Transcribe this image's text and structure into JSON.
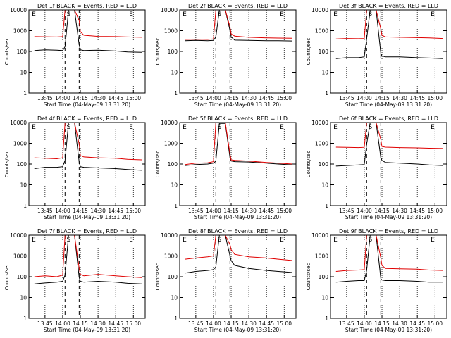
{
  "figure": {
    "xlabel": "Start Time (04-May-09 13:31:20)",
    "ylabel": "Counts/sec"
  },
  "colors": {
    "events": "#000000",
    "lld": "#e00000",
    "background": "#ffffff"
  },
  "chart_data": [
    {
      "type": "line",
      "title": "Det 1f BLACK = Events, RED = LLD",
      "xlabel": "Start Time (04-May-09 13:31:20)",
      "ylabel": "Counts/sec",
      "yscale": "log",
      "ylim": [
        1,
        10000
      ],
      "x_ticks": [
        "13:45",
        "14:00",
        "14:15",
        "14:30",
        "14:45",
        "15:00"
      ],
      "y_ticks": [
        "1",
        "10",
        "100",
        "1000",
        "10000"
      ],
      "markers": [
        "E",
        "S",
        "E"
      ],
      "series": [
        {
          "name": "Events",
          "color": "#000000",
          "x": [
            "13:36",
            "13:45",
            "13:55",
            "14:00",
            "14:02",
            "14:05",
            "14:10",
            "14:14",
            "14:15",
            "14:18",
            "14:30",
            "14:45",
            "14:55",
            "15:07"
          ],
          "y": [
            110,
            120,
            115,
            110,
            170,
            10000,
            10000,
            200,
            120,
            110,
            115,
            105,
            95,
            90
          ]
        },
        {
          "name": "LLD",
          "color": "#e00000",
          "x": [
            "13:36",
            "13:45",
            "13:55",
            "14:00",
            "14:02",
            "14:05",
            "14:10",
            "14:14",
            "14:15",
            "14:18",
            "14:30",
            "14:45",
            "14:55",
            "15:07"
          ],
          "y": [
            520,
            510,
            500,
            520,
            10000,
            10000,
            10000,
            3000,
            900,
            600,
            530,
            520,
            500,
            480
          ]
        }
      ]
    },
    {
      "type": "line",
      "title": "Det 2f BLACK = Events, RED = LLD",
      "xlabel": "Start Time (04-May-09 13:31:20)",
      "ylabel": "Counts/sec",
      "yscale": "log",
      "ylim": [
        1,
        10000
      ],
      "x_ticks": [
        "13:45",
        "14:00",
        "14:15",
        "14:30",
        "14:45",
        "15:00"
      ],
      "y_ticks": [
        "1",
        "10",
        "100",
        "1000",
        "10000"
      ],
      "markers": [
        "E",
        "S",
        "E"
      ],
      "series": [
        {
          "name": "Events",
          "color": "#000000",
          "x": [
            "13:36",
            "13:45",
            "13:55",
            "14:00",
            "14:02",
            "14:05",
            "14:10",
            "14:14",
            "14:15",
            "14:18",
            "14:30",
            "14:45",
            "14:55",
            "15:07"
          ],
          "y": [
            330,
            340,
            330,
            340,
            500,
            10000,
            10000,
            1000,
            500,
            350,
            340,
            330,
            330,
            320
          ]
        },
        {
          "name": "LLD",
          "color": "#e00000",
          "x": [
            "13:36",
            "13:45",
            "13:55",
            "14:00",
            "14:02",
            "14:05",
            "14:10",
            "14:14",
            "14:15",
            "14:18",
            "14:30",
            "14:45",
            "14:55",
            "15:07"
          ],
          "y": [
            380,
            390,
            380,
            400,
            10000,
            10000,
            10000,
            1500,
            700,
            550,
            480,
            450,
            440,
            430
          ]
        }
      ]
    },
    {
      "type": "line",
      "title": "Det 3f BLACK = Events, RED = LLD",
      "xlabel": "Start Time (04-May-09 13:31:20)",
      "ylabel": "Counts/sec",
      "yscale": "log",
      "ylim": [
        1,
        10000
      ],
      "x_ticks": [
        "13:45",
        "14:00",
        "14:15",
        "14:30",
        "14:45",
        "15:00"
      ],
      "y_ticks": [
        "1",
        "10",
        "100",
        "1000",
        "10000"
      ],
      "markers": [
        "E",
        "S",
        "E"
      ],
      "series": [
        {
          "name": "Events",
          "color": "#000000",
          "x": [
            "13:36",
            "13:45",
            "13:55",
            "14:00",
            "14:02",
            "14:05",
            "14:10",
            "14:14",
            "14:15",
            "14:18",
            "14:30",
            "14:45",
            "14:55",
            "15:07"
          ],
          "y": [
            45,
            50,
            50,
            55,
            400,
            10000,
            10000,
            80,
            60,
            55,
            55,
            50,
            48,
            45
          ]
        },
        {
          "name": "LLD",
          "color": "#e00000",
          "x": [
            "13:36",
            "13:45",
            "13:55",
            "14:00",
            "14:02",
            "14:05",
            "14:10",
            "14:14",
            "14:15",
            "14:18",
            "14:30",
            "14:45",
            "14:55",
            "15:07"
          ],
          "y": [
            400,
            420,
            410,
            420,
            10000,
            10000,
            10000,
            1200,
            600,
            500,
            480,
            460,
            450,
            420
          ]
        }
      ]
    },
    {
      "type": "line",
      "title": "Det 4f BLACK = Events, RED = LLD",
      "xlabel": "Start Time (04-May-09 13:31:20)",
      "ylabel": "Counts/sec",
      "yscale": "log",
      "ylim": [
        1,
        10000
      ],
      "x_ticks": [
        "13:45",
        "14:00",
        "14:15",
        "14:30",
        "14:45",
        "15:00"
      ],
      "y_ticks": [
        "1",
        "10",
        "100",
        "1000",
        "10000"
      ],
      "markers": [
        "E",
        "S",
        "E"
      ],
      "series": [
        {
          "name": "Events",
          "color": "#000000",
          "x": [
            "13:36",
            "13:45",
            "13:55",
            "14:00",
            "14:02",
            "14:05",
            "14:10",
            "14:14",
            "14:15",
            "14:18",
            "14:30",
            "14:45",
            "14:55",
            "15:07"
          ],
          "y": [
            60,
            70,
            70,
            75,
            150,
            10000,
            10000,
            120,
            75,
            70,
            65,
            60,
            55,
            50
          ]
        },
        {
          "name": "LLD",
          "color": "#e00000",
          "x": [
            "13:36",
            "13:45",
            "13:55",
            "14:00",
            "14:02",
            "14:05",
            "14:10",
            "14:14",
            "14:15",
            "14:18",
            "14:30",
            "14:45",
            "14:55",
            "15:07"
          ],
          "y": [
            200,
            190,
            180,
            200,
            10000,
            10000,
            10000,
            900,
            260,
            220,
            200,
            190,
            170,
            160
          ]
        }
      ]
    },
    {
      "type": "line",
      "title": "Det 5f BLACK = Events, RED = LLD",
      "xlabel": "Start Time (04-May-09 13:31:20)",
      "ylabel": "Counts/sec",
      "yscale": "log",
      "ylim": [
        1,
        10000
      ],
      "x_ticks": [
        "13:45",
        "14:00",
        "14:15",
        "14:30",
        "14:45",
        "15:00"
      ],
      "y_ticks": [
        "1",
        "10",
        "100",
        "1000",
        "10000"
      ],
      "markers": [
        "E",
        "S",
        "E"
      ],
      "series": [
        {
          "name": "Events",
          "color": "#000000",
          "x": [
            "13:36",
            "13:45",
            "13:55",
            "14:00",
            "14:02",
            "14:05",
            "14:10",
            "14:14",
            "14:15",
            "14:18",
            "14:30",
            "14:45",
            "14:55",
            "15:07"
          ],
          "y": [
            85,
            95,
            100,
            110,
            140,
            9000,
            9000,
            200,
            140,
            130,
            125,
            110,
            100,
            90
          ]
        },
        {
          "name": "LLD",
          "color": "#e00000",
          "x": [
            "13:36",
            "13:45",
            "13:55",
            "14:00",
            "14:02",
            "14:05",
            "14:10",
            "14:14",
            "14:15",
            "14:18",
            "14:30",
            "14:45",
            "14:55",
            "15:07"
          ],
          "y": [
            95,
            110,
            115,
            130,
            10000,
            10000,
            10000,
            300,
            160,
            150,
            140,
            120,
            110,
            100
          ]
        }
      ]
    },
    {
      "type": "line",
      "title": "Det 6f BLACK = Events, RED = LLD",
      "xlabel": "Start Time (04-May-09 13:31:20)",
      "ylabel": "Counts/sec",
      "yscale": "log",
      "ylim": [
        1,
        10000
      ],
      "x_ticks": [
        "13:45",
        "14:00",
        "14:15",
        "14:30",
        "14:45",
        "15:00"
      ],
      "y_ticks": [
        "1",
        "10",
        "100",
        "1000",
        "10000"
      ],
      "markers": [
        "E",
        "S",
        "E"
      ],
      "series": [
        {
          "name": "Events",
          "color": "#000000",
          "x": [
            "13:36",
            "13:45",
            "13:55",
            "14:00",
            "14:02",
            "14:05",
            "14:10",
            "14:14",
            "14:15",
            "14:18",
            "14:30",
            "14:45",
            "14:55",
            "15:07"
          ],
          "y": [
            80,
            85,
            90,
            95,
            900,
            10000,
            10000,
            200,
            150,
            120,
            110,
            100,
            90,
            85
          ]
        },
        {
          "name": "LLD",
          "color": "#e00000",
          "x": [
            "13:36",
            "13:45",
            "13:55",
            "14:00",
            "14:02",
            "14:05",
            "14:10",
            "14:14",
            "14:15",
            "14:18",
            "14:30",
            "14:45",
            "14:55",
            "15:07"
          ],
          "y": [
            650,
            640,
            620,
            640,
            10000,
            10000,
            10000,
            1500,
            700,
            650,
            620,
            600,
            580,
            560
          ]
        }
      ]
    },
    {
      "type": "line",
      "title": "Det 7f BLACK = Events, RED = LLD",
      "xlabel": "Start Time (04-May-09 13:31:20)",
      "ylabel": "Counts/sec",
      "yscale": "log",
      "ylim": [
        1,
        10000
      ],
      "x_ticks": [
        "13:45",
        "14:00",
        "14:15",
        "14:30",
        "14:45",
        "15:00"
      ],
      "y_ticks": [
        "1",
        "10",
        "100",
        "1000",
        "10000"
      ],
      "markers": [
        "E",
        "S",
        "E"
      ],
      "series": [
        {
          "name": "Events",
          "color": "#000000",
          "x": [
            "13:36",
            "13:45",
            "13:55",
            "14:00",
            "14:02",
            "14:05",
            "14:10",
            "14:14",
            "14:15",
            "14:18",
            "14:30",
            "14:45",
            "14:55",
            "15:07"
          ],
          "y": [
            45,
            50,
            55,
            60,
            120,
            10000,
            10000,
            90,
            60,
            55,
            60,
            55,
            48,
            45
          ]
        },
        {
          "name": "LLD",
          "color": "#e00000",
          "x": [
            "13:36",
            "13:45",
            "13:55",
            "14:00",
            "14:02",
            "14:05",
            "14:10",
            "14:14",
            "14:15",
            "14:18",
            "14:30",
            "14:45",
            "14:55",
            "15:07"
          ],
          "y": [
            100,
            110,
            100,
            120,
            10000,
            10000,
            10000,
            250,
            130,
            110,
            130,
            110,
            100,
            90
          ]
        }
      ]
    },
    {
      "type": "line",
      "title": "Det 8f BLACK = Events, RED = LLD",
      "xlabel": "Start Time (04-May-09 13:31:20)",
      "ylabel": "Counts/sec",
      "yscale": "log",
      "ylim": [
        1,
        10000
      ],
      "x_ticks": [
        "13:45",
        "14:00",
        "14:15",
        "14:30",
        "14:45",
        "15:00"
      ],
      "y_ticks": [
        "1",
        "10",
        "100",
        "1000",
        "10000"
      ],
      "markers": [
        "E",
        "S",
        "E"
      ],
      "series": [
        {
          "name": "Events",
          "color": "#000000",
          "x": [
            "13:36",
            "13:45",
            "13:55",
            "14:00",
            "14:02",
            "14:05",
            "14:10",
            "14:14",
            "14:15",
            "14:18",
            "14:30",
            "14:45",
            "14:55",
            "15:07"
          ],
          "y": [
            150,
            180,
            200,
            220,
            300,
            10000,
            10000,
            1000,
            600,
            350,
            250,
            200,
            180,
            160
          ]
        },
        {
          "name": "LLD",
          "color": "#e00000",
          "x": [
            "13:36",
            "13:45",
            "13:55",
            "14:00",
            "14:02",
            "14:05",
            "14:10",
            "14:14",
            "14:15",
            "14:18",
            "14:30",
            "14:45",
            "14:55",
            "15:07"
          ],
          "y": [
            700,
            800,
            900,
            1000,
            10000,
            10000,
            10000,
            3500,
            2000,
            1200,
            900,
            800,
            700,
            600
          ]
        }
      ]
    },
    {
      "type": "line",
      "title": "Det 9f BLACK = Events, RED = LLD",
      "xlabel": "Start Time (04-May-09 13:31:20)",
      "ylabel": "Counts/sec",
      "yscale": "log",
      "ylim": [
        1,
        10000
      ],
      "x_ticks": [
        "13:45",
        "14:00",
        "14:15",
        "14:30",
        "14:45",
        "15:00"
      ],
      "y_ticks": [
        "1",
        "10",
        "100",
        "1000",
        "10000"
      ],
      "markers": [
        "E",
        "S",
        "E"
      ],
      "series": [
        {
          "name": "Events",
          "color": "#000000",
          "x": [
            "13:36",
            "13:45",
            "13:55",
            "14:00",
            "14:02",
            "14:05",
            "14:10",
            "14:14",
            "14:15",
            "14:18",
            "14:30",
            "14:45",
            "14:55",
            "15:07"
          ],
          "y": [
            55,
            60,
            65,
            65,
            200,
            10000,
            10000,
            80,
            70,
            65,
            65,
            60,
            55,
            55
          ]
        },
        {
          "name": "LLD",
          "color": "#e00000",
          "x": [
            "13:36",
            "13:45",
            "13:55",
            "14:00",
            "14:02",
            "14:05",
            "14:10",
            "14:14",
            "14:15",
            "14:18",
            "14:30",
            "14:45",
            "14:55",
            "15:07"
          ],
          "y": [
            180,
            200,
            210,
            220,
            10000,
            10000,
            10000,
            800,
            350,
            250,
            240,
            230,
            210,
            200
          ]
        }
      ]
    }
  ]
}
